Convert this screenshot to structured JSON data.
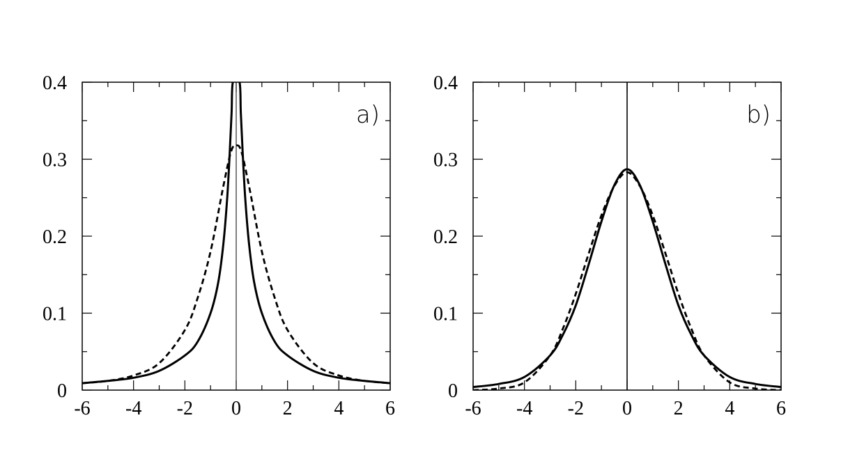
{
  "chart_data": [
    {
      "type": "line",
      "panel_label": "a)",
      "xlim": [
        -6,
        6
      ],
      "ylim": [
        0,
        0.4
      ],
      "x_ticks": [
        "-6",
        "-4",
        "-2",
        "0",
        "2",
        "4",
        "6"
      ],
      "y_ticks": [
        "0",
        "0.1",
        "0.2",
        "0.3",
        "0.4"
      ],
      "grid": false,
      "vertical_line_x": 0,
      "series": [
        {
          "style": "solid",
          "points": [
            [
              -6,
              0.009
            ],
            [
              -5,
              0.012
            ],
            [
              -4,
              0.016
            ],
            [
              -3,
              0.025
            ],
            [
              -2,
              0.045
            ],
            [
              -1.5,
              0.063
            ],
            [
              -1,
              0.1
            ],
            [
              -0.7,
              0.14
            ],
            [
              -0.5,
              0.19
            ],
            [
              -0.35,
              0.25
            ],
            [
              -0.25,
              0.31
            ],
            [
              -0.18,
              0.36
            ],
            [
              -0.13,
              0.4
            ],
            [
              0.13,
              0.4
            ],
            [
              0.18,
              0.36
            ],
            [
              0.25,
              0.31
            ],
            [
              0.35,
              0.25
            ],
            [
              0.5,
              0.19
            ],
            [
              0.7,
              0.14
            ],
            [
              1,
              0.1
            ],
            [
              1.5,
              0.063
            ],
            [
              2,
              0.045
            ],
            [
              3,
              0.025
            ],
            [
              4,
              0.016
            ],
            [
              5,
              0.012
            ],
            [
              6,
              0.009
            ]
          ]
        },
        {
          "style": "dashed",
          "points": [
            [
              -6,
              0.009
            ],
            [
              -5,
              0.012
            ],
            [
              -4,
              0.019
            ],
            [
              -3,
              0.035
            ],
            [
              -2,
              0.078
            ],
            [
              -1.5,
              0.12
            ],
            [
              -1,
              0.18
            ],
            [
              -0.5,
              0.265
            ],
            [
              -0.2,
              0.31
            ],
            [
              0,
              0.318
            ],
            [
              0.2,
              0.31
            ],
            [
              0.5,
              0.265
            ],
            [
              1,
              0.18
            ],
            [
              1.5,
              0.12
            ],
            [
              2,
              0.078
            ],
            [
              3,
              0.035
            ],
            [
              4,
              0.019
            ],
            [
              5,
              0.012
            ],
            [
              6,
              0.009
            ]
          ]
        }
      ]
    },
    {
      "type": "line",
      "panel_label": "b)",
      "xlim": [
        -6,
        6
      ],
      "ylim": [
        0,
        0.4
      ],
      "x_ticks": [
        "-6",
        "-4",
        "-2",
        "0",
        "2",
        "4",
        "6"
      ],
      "y_ticks": [
        "0",
        "0.1",
        "0.2",
        "0.3",
        "0.4"
      ],
      "grid": false,
      "vertical_line_x": 0,
      "series": [
        {
          "style": "solid",
          "points": [
            [
              -6,
              0.004
            ],
            [
              -5,
              0.008
            ],
            [
              -4,
              0.017
            ],
            [
              -3,
              0.045
            ],
            [
              -2.5,
              0.072
            ],
            [
              -2,
              0.11
            ],
            [
              -1.5,
              0.163
            ],
            [
              -1,
              0.219
            ],
            [
              -0.5,
              0.266
            ],
            [
              0,
              0.287
            ],
            [
              0.5,
              0.266
            ],
            [
              1,
              0.219
            ],
            [
              1.5,
              0.163
            ],
            [
              2,
              0.11
            ],
            [
              2.5,
              0.072
            ],
            [
              3,
              0.045
            ],
            [
              4,
              0.017
            ],
            [
              5,
              0.008
            ],
            [
              6,
              0.004
            ]
          ]
        },
        {
          "style": "dashed",
          "points": [
            [
              -6,
              0.0
            ],
            [
              -5,
              0.002
            ],
            [
              -4,
              0.01
            ],
            [
              -3,
              0.045
            ],
            [
              -2.5,
              0.08
            ],
            [
              -2,
              0.125
            ],
            [
              -1.5,
              0.177
            ],
            [
              -1,
              0.227
            ],
            [
              -0.5,
              0.265
            ],
            [
              0,
              0.283
            ],
            [
              0.5,
              0.265
            ],
            [
              1,
              0.227
            ],
            [
              1.5,
              0.177
            ],
            [
              2,
              0.125
            ],
            [
              2.5,
              0.08
            ],
            [
              3,
              0.045
            ],
            [
              4,
              0.01
            ],
            [
              5,
              0.002
            ],
            [
              6,
              0.0
            ]
          ]
        }
      ]
    }
  ]
}
